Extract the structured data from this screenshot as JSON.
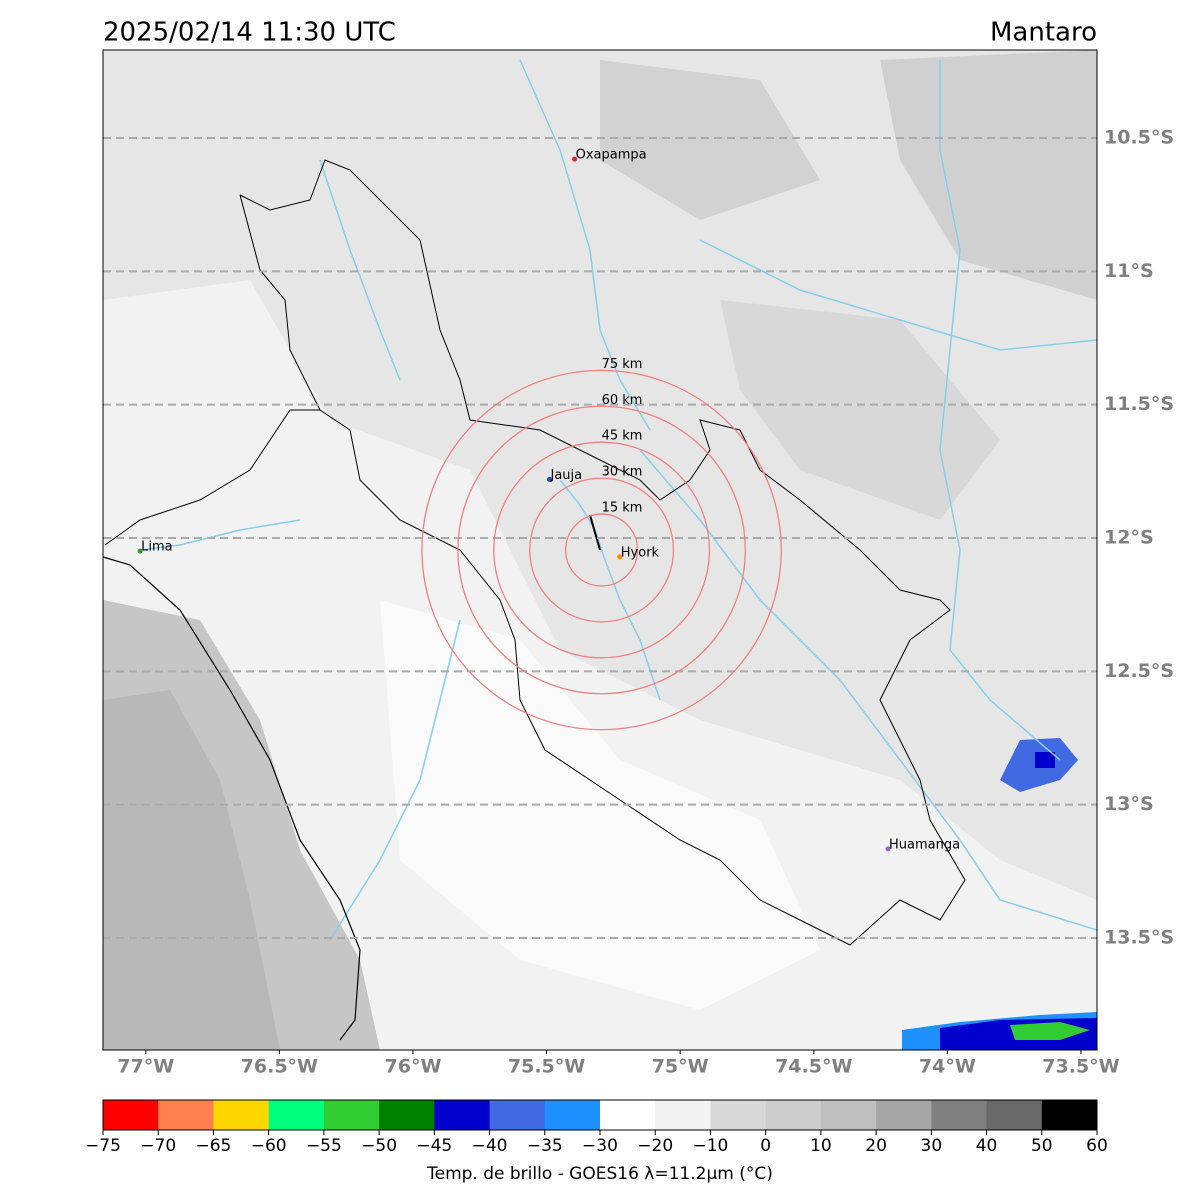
{
  "title": "2025/02/14 11:30 UTC",
  "region": "Mantaro",
  "map": {
    "lon_lim": [
      -77.16,
      -73.44
    ],
    "lat_lim": [
      -10.17,
      -13.92
    ],
    "grid": true,
    "lon_ticks": [
      {
        "value": -77,
        "label": "77°W"
      },
      {
        "value": -76.5,
        "label": "76.5°W"
      },
      {
        "value": -76,
        "label": "76°W"
      },
      {
        "value": -75.5,
        "label": "75.5°W"
      },
      {
        "value": -75,
        "label": "75°W"
      },
      {
        "value": -74.5,
        "label": "74.5°W"
      },
      {
        "value": -74,
        "label": "74°W"
      },
      {
        "value": -73.5,
        "label": "73.5°W"
      }
    ],
    "lat_ticks": [
      {
        "value": -10.5,
        "label": "10.5°S"
      },
      {
        "value": -11,
        "label": "11°S"
      },
      {
        "value": -11.5,
        "label": "11.5°S"
      },
      {
        "value": -12,
        "label": "12°S"
      },
      {
        "value": -12.5,
        "label": "12.5°S"
      },
      {
        "value": -13,
        "label": "13°S"
      },
      {
        "value": -13.5,
        "label": "13.5°S"
      }
    ],
    "cities": [
      {
        "name": "Oxapampa",
        "lon": -75.395,
        "lat": -10.579,
        "color": "#d62728"
      },
      {
        "name": "Jauja",
        "lon": -75.489,
        "lat": -11.78,
        "color": "#1f4fbf"
      },
      {
        "name": "Hyork",
        "lon": -75.226,
        "lat": -12.071,
        "color": "#ff8c00"
      },
      {
        "name": "Lima",
        "lon": -77.021,
        "lat": -12.049,
        "color": "#2ca02c"
      },
      {
        "name": "Huamanga",
        "lon": -74.222,
        "lat": -13.166,
        "color": "#9467bd"
      }
    ],
    "rings": {
      "center_lon": -75.294,
      "center_lat": -12.045,
      "color": "#f08080",
      "radii_km": [
        15,
        30,
        45,
        60,
        75
      ],
      "labels": [
        "15 km",
        "30 km",
        "45 km",
        "60 km",
        "75 km"
      ]
    }
  },
  "colorbar": {
    "label": "Temp. de brillo - GOES16 λ=11.2μm (°C)",
    "ticks": [
      {
        "value": -75,
        "label": "−75"
      },
      {
        "value": -70,
        "label": "−70"
      },
      {
        "value": -65,
        "label": "−65"
      },
      {
        "value": -60,
        "label": "−60"
      },
      {
        "value": -55,
        "label": "−55"
      },
      {
        "value": -50,
        "label": "−50"
      },
      {
        "value": -45,
        "label": "−45"
      },
      {
        "value": -40,
        "label": "−40"
      },
      {
        "value": -35,
        "label": "−35"
      },
      {
        "value": -30,
        "label": "−30"
      },
      {
        "value": -20,
        "label": "−20"
      },
      {
        "value": -10,
        "label": "−10"
      },
      0,
      10,
      20,
      30,
      40,
      50,
      60
    ],
    "colors": [
      "#ff0000",
      "#ff7f50",
      "#ffd700",
      "#00ff7f",
      "#32cd32",
      "#008000",
      "#0000cd",
      "#4169e1",
      "#1e90ff",
      "#ffffff",
      "#f2f2f2",
      "#d9d9d9",
      "#cccccc",
      "#bfbfbf",
      "#a6a6a6",
      "#808080",
      "#696969",
      "#000000"
    ]
  }
}
